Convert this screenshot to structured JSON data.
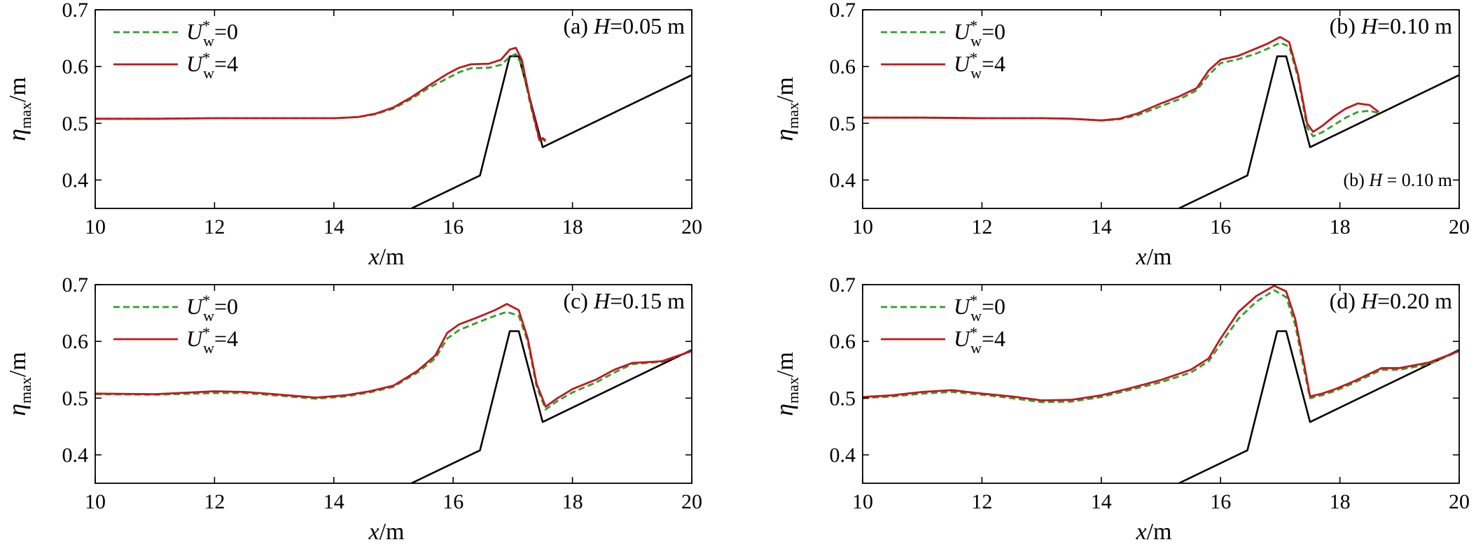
{
  "chart_data": [
    {
      "type": "line",
      "title": "(a) H=0.05 m",
      "title_prefix": "(a) ",
      "title_var": "H",
      "title_suffix": "=0.05 m",
      "xlabel_var": "x",
      "xlabel_unit": "/m",
      "ylabel_var": "η",
      "ylabel_sub": "max",
      "ylabel_unit": "/m",
      "xlim": [
        10,
        20
      ],
      "ylim": [
        0.35,
        0.7
      ],
      "xticks": [
        "10",
        "12",
        "14",
        "16",
        "18",
        "20"
      ],
      "yticks": [
        "0.4",
        "0.5",
        "0.6",
        "0.7"
      ],
      "legend": "top-left",
      "grid": false,
      "series": [
        {
          "name": "U*w=0",
          "var": "U",
          "sup": "*",
          "sub": "w",
          "value": "=0",
          "color": "#2ca02c",
          "style": "dashed",
          "x": [
            10,
            11,
            12,
            13,
            14,
            14.4,
            14.7,
            15,
            15.3,
            15.6,
            15.9,
            16.1,
            16.3,
            16.6,
            16.8,
            16.95,
            17.05,
            17.15,
            17.3,
            17.45,
            17.5,
            17.55
          ],
          "y": [
            0.508,
            0.508,
            0.509,
            0.509,
            0.509,
            0.511,
            0.516,
            0.526,
            0.543,
            0.563,
            0.579,
            0.59,
            0.597,
            0.598,
            0.603,
            0.617,
            0.622,
            0.603,
            0.53,
            0.468,
            0.472,
            0.468
          ]
        },
        {
          "name": "U*w=4",
          "var": "U",
          "sup": "*",
          "sub": "w",
          "value": "=4",
          "color": "#c0181e",
          "style": "solid",
          "x": [
            10,
            11,
            12,
            13,
            14,
            14.4,
            14.7,
            15,
            15.3,
            15.6,
            15.9,
            16.1,
            16.3,
            16.6,
            16.8,
            16.95,
            17.05,
            17.15,
            17.3,
            17.45,
            17.5,
            17.55
          ],
          "y": [
            0.508,
            0.508,
            0.509,
            0.509,
            0.509,
            0.511,
            0.517,
            0.528,
            0.546,
            0.567,
            0.587,
            0.598,
            0.604,
            0.605,
            0.612,
            0.63,
            0.633,
            0.612,
            0.535,
            0.47,
            0.474,
            0.47
          ]
        },
        {
          "name": "",
          "color": "#000000",
          "style": "solid",
          "x": [
            15.3,
            16.45,
            16.95,
            17.1,
            17.5,
            20
          ],
          "y": [
            0.35,
            0.408,
            0.618,
            0.618,
            0.458,
            0.585
          ]
        }
      ],
      "annotation": ""
    },
    {
      "type": "line",
      "title": "(b) H=0.10 m",
      "title_prefix": "(b) ",
      "title_var": "H",
      "title_suffix": "=0.10 m",
      "xlabel_var": "x",
      "xlabel_unit": "/m",
      "ylabel_var": "η",
      "ylabel_sub": "max",
      "ylabel_unit": "/m",
      "xlim": [
        10,
        20
      ],
      "ylim": [
        0.35,
        0.7
      ],
      "xticks": [
        "10",
        "12",
        "14",
        "16",
        "18",
        "20"
      ],
      "yticks": [
        "0.4",
        "0.5",
        "0.6",
        "0.7"
      ],
      "legend": "top-left",
      "grid": false,
      "series": [
        {
          "name": "U*w=0",
          "var": "U",
          "sup": "*",
          "sub": "w",
          "value": "=0",
          "color": "#2ca02c",
          "style": "dashed",
          "x": [
            10,
            11,
            12,
            13,
            13.5,
            14,
            14.3,
            14.6,
            15,
            15.3,
            15.6,
            15.8,
            16,
            16.3,
            16.6,
            16.8,
            17,
            17.15,
            17.3,
            17.45,
            17.55,
            17.7,
            17.9,
            18.1,
            18.3,
            18.5,
            18.65
          ],
          "y": [
            0.51,
            0.51,
            0.509,
            0.509,
            0.508,
            0.505,
            0.507,
            0.514,
            0.53,
            0.542,
            0.558,
            0.585,
            0.606,
            0.613,
            0.623,
            0.632,
            0.642,
            0.635,
            0.58,
            0.493,
            0.477,
            0.484,
            0.497,
            0.51,
            0.52,
            0.522,
            0.518
          ]
        },
        {
          "name": "U*w=4",
          "var": "U",
          "sup": "*",
          "sub": "w",
          "value": "=4",
          "color": "#c0181e",
          "style": "solid",
          "x": [
            10,
            11,
            12,
            13,
            13.5,
            14,
            14.3,
            14.6,
            15,
            15.3,
            15.6,
            15.8,
            16,
            16.3,
            16.6,
            16.8,
            17,
            17.15,
            17.3,
            17.45,
            17.55,
            17.7,
            17.9,
            18.1,
            18.3,
            18.5,
            18.65
          ],
          "y": [
            0.51,
            0.51,
            0.509,
            0.509,
            0.508,
            0.505,
            0.508,
            0.517,
            0.535,
            0.547,
            0.562,
            0.593,
            0.612,
            0.619,
            0.632,
            0.641,
            0.652,
            0.643,
            0.585,
            0.5,
            0.485,
            0.495,
            0.512,
            0.526,
            0.535,
            0.532,
            0.52
          ]
        },
        {
          "name": "",
          "color": "#000000",
          "style": "solid",
          "x": [
            15.3,
            16.45,
            16.95,
            17.1,
            17.5,
            20
          ],
          "y": [
            0.35,
            0.408,
            0.618,
            0.618,
            0.458,
            0.585
          ]
        }
      ],
      "annotation": "(b)  H = 0.10 m",
      "annotation_prefix": "(b)  ",
      "annotation_var": "H",
      "annotation_suffix": " = 0.10 m"
    },
    {
      "type": "line",
      "title": "(c) H=0.15 m",
      "title_prefix": "(c) ",
      "title_var": "H",
      "title_suffix": "=0.15 m",
      "xlabel_var": "x",
      "xlabel_unit": "/m",
      "ylabel_var": "η",
      "ylabel_sub": "max",
      "ylabel_unit": "/m",
      "xlim": [
        10,
        20
      ],
      "ylim": [
        0.35,
        0.7
      ],
      "xticks": [
        "10",
        "12",
        "14",
        "16",
        "18",
        "20"
      ],
      "yticks": [
        "0.4",
        "0.5",
        "0.6",
        "0.7"
      ],
      "legend": "top-left",
      "grid": false,
      "series": [
        {
          "name": "U*w=0",
          "var": "U",
          "sup": "*",
          "sub": "w",
          "value": "=0",
          "color": "#2ca02c",
          "style": "dashed",
          "x": [
            10,
            11,
            12,
            12.5,
            13,
            13.7,
            14.2,
            14.6,
            15,
            15.4,
            15.7,
            15.9,
            16.1,
            16.4,
            16.7,
            16.9,
            17.1,
            17.25,
            17.4,
            17.55,
            17.75,
            18,
            18.4,
            18.7,
            19,
            19.5,
            20
          ],
          "y": [
            0.507,
            0.506,
            0.509,
            0.509,
            0.505,
            0.499,
            0.503,
            0.51,
            0.52,
            0.545,
            0.57,
            0.605,
            0.62,
            0.633,
            0.645,
            0.652,
            0.645,
            0.6,
            0.52,
            0.48,
            0.495,
            0.51,
            0.528,
            0.545,
            0.56,
            0.564,
            0.583
          ]
        },
        {
          "name": "U*w=4",
          "var": "U",
          "sup": "*",
          "sub": "w",
          "value": "=4",
          "color": "#c0181e",
          "style": "solid",
          "x": [
            10,
            11,
            12,
            12.5,
            13,
            13.7,
            14.2,
            14.6,
            15,
            15.4,
            15.7,
            15.9,
            16.1,
            16.4,
            16.7,
            16.9,
            17.1,
            17.25,
            17.4,
            17.55,
            17.75,
            18,
            18.4,
            18.7,
            19,
            19.5,
            20
          ],
          "y": [
            0.508,
            0.507,
            0.512,
            0.511,
            0.507,
            0.501,
            0.505,
            0.512,
            0.522,
            0.548,
            0.575,
            0.615,
            0.63,
            0.642,
            0.655,
            0.666,
            0.655,
            0.605,
            0.525,
            0.485,
            0.5,
            0.516,
            0.533,
            0.55,
            0.562,
            0.565,
            0.583
          ]
        },
        {
          "name": "",
          "color": "#000000",
          "style": "solid",
          "x": [
            15.3,
            16.45,
            16.95,
            17.1,
            17.5,
            20
          ],
          "y": [
            0.35,
            0.408,
            0.618,
            0.618,
            0.458,
            0.585
          ]
        }
      ],
      "annotation": ""
    },
    {
      "type": "line",
      "title": "(d) H=0.20 m",
      "title_prefix": "(d) ",
      "title_var": "H",
      "title_suffix": "=0.20 m",
      "xlabel_var": "x",
      "xlabel_unit": "/m",
      "ylabel_var": "η",
      "ylabel_sub": "max",
      "ylabel_unit": "/m",
      "xlim": [
        10,
        20
      ],
      "ylim": [
        0.35,
        0.7
      ],
      "xticks": [
        "10",
        "12",
        "14",
        "16",
        "18",
        "20"
      ],
      "yticks": [
        "0.4",
        "0.5",
        "0.6",
        "0.7"
      ],
      "legend": "top-left",
      "grid": false,
      "series": [
        {
          "name": "U*w=0",
          "var": "U",
          "sup": "*",
          "sub": "w",
          "value": "=0",
          "color": "#2ca02c",
          "style": "dashed",
          "x": [
            10,
            10.5,
            11,
            11.5,
            12,
            12.5,
            13,
            13.5,
            14,
            14.5,
            15,
            15.5,
            15.8,
            16,
            16.3,
            16.6,
            16.9,
            17.1,
            17.25,
            17.4,
            17.5,
            17.7,
            17.9,
            18.2,
            18.5,
            18.7,
            19,
            19.5,
            20
          ],
          "y": [
            0.5,
            0.503,
            0.508,
            0.511,
            0.506,
            0.5,
            0.493,
            0.494,
            0.502,
            0.515,
            0.528,
            0.545,
            0.565,
            0.595,
            0.64,
            0.67,
            0.69,
            0.678,
            0.63,
            0.55,
            0.5,
            0.505,
            0.512,
            0.525,
            0.54,
            0.55,
            0.55,
            0.56,
            0.583
          ]
        },
        {
          "name": "U*w=4",
          "var": "U",
          "sup": "*",
          "sub": "w",
          "value": "=4",
          "color": "#c0181e",
          "style": "solid",
          "x": [
            10,
            10.5,
            11,
            11.5,
            12,
            12.5,
            13,
            13.5,
            14,
            14.5,
            15,
            15.5,
            15.8,
            16,
            16.3,
            16.6,
            16.9,
            17.1,
            17.25,
            17.4,
            17.5,
            17.7,
            17.9,
            18.2,
            18.5,
            18.7,
            19,
            19.5,
            20
          ],
          "y": [
            0.502,
            0.505,
            0.511,
            0.514,
            0.508,
            0.503,
            0.496,
            0.497,
            0.505,
            0.518,
            0.532,
            0.55,
            0.57,
            0.605,
            0.652,
            0.68,
            0.698,
            0.688,
            0.64,
            0.56,
            0.503,
            0.508,
            0.515,
            0.528,
            0.543,
            0.553,
            0.553,
            0.563,
            0.583
          ]
        },
        {
          "name": "",
          "color": "#000000",
          "style": "solid",
          "x": [
            15.3,
            16.45,
            16.95,
            17.1,
            17.5,
            20
          ],
          "y": [
            0.35,
            0.408,
            0.618,
            0.618,
            0.458,
            0.585
          ]
        }
      ],
      "annotation": ""
    }
  ]
}
